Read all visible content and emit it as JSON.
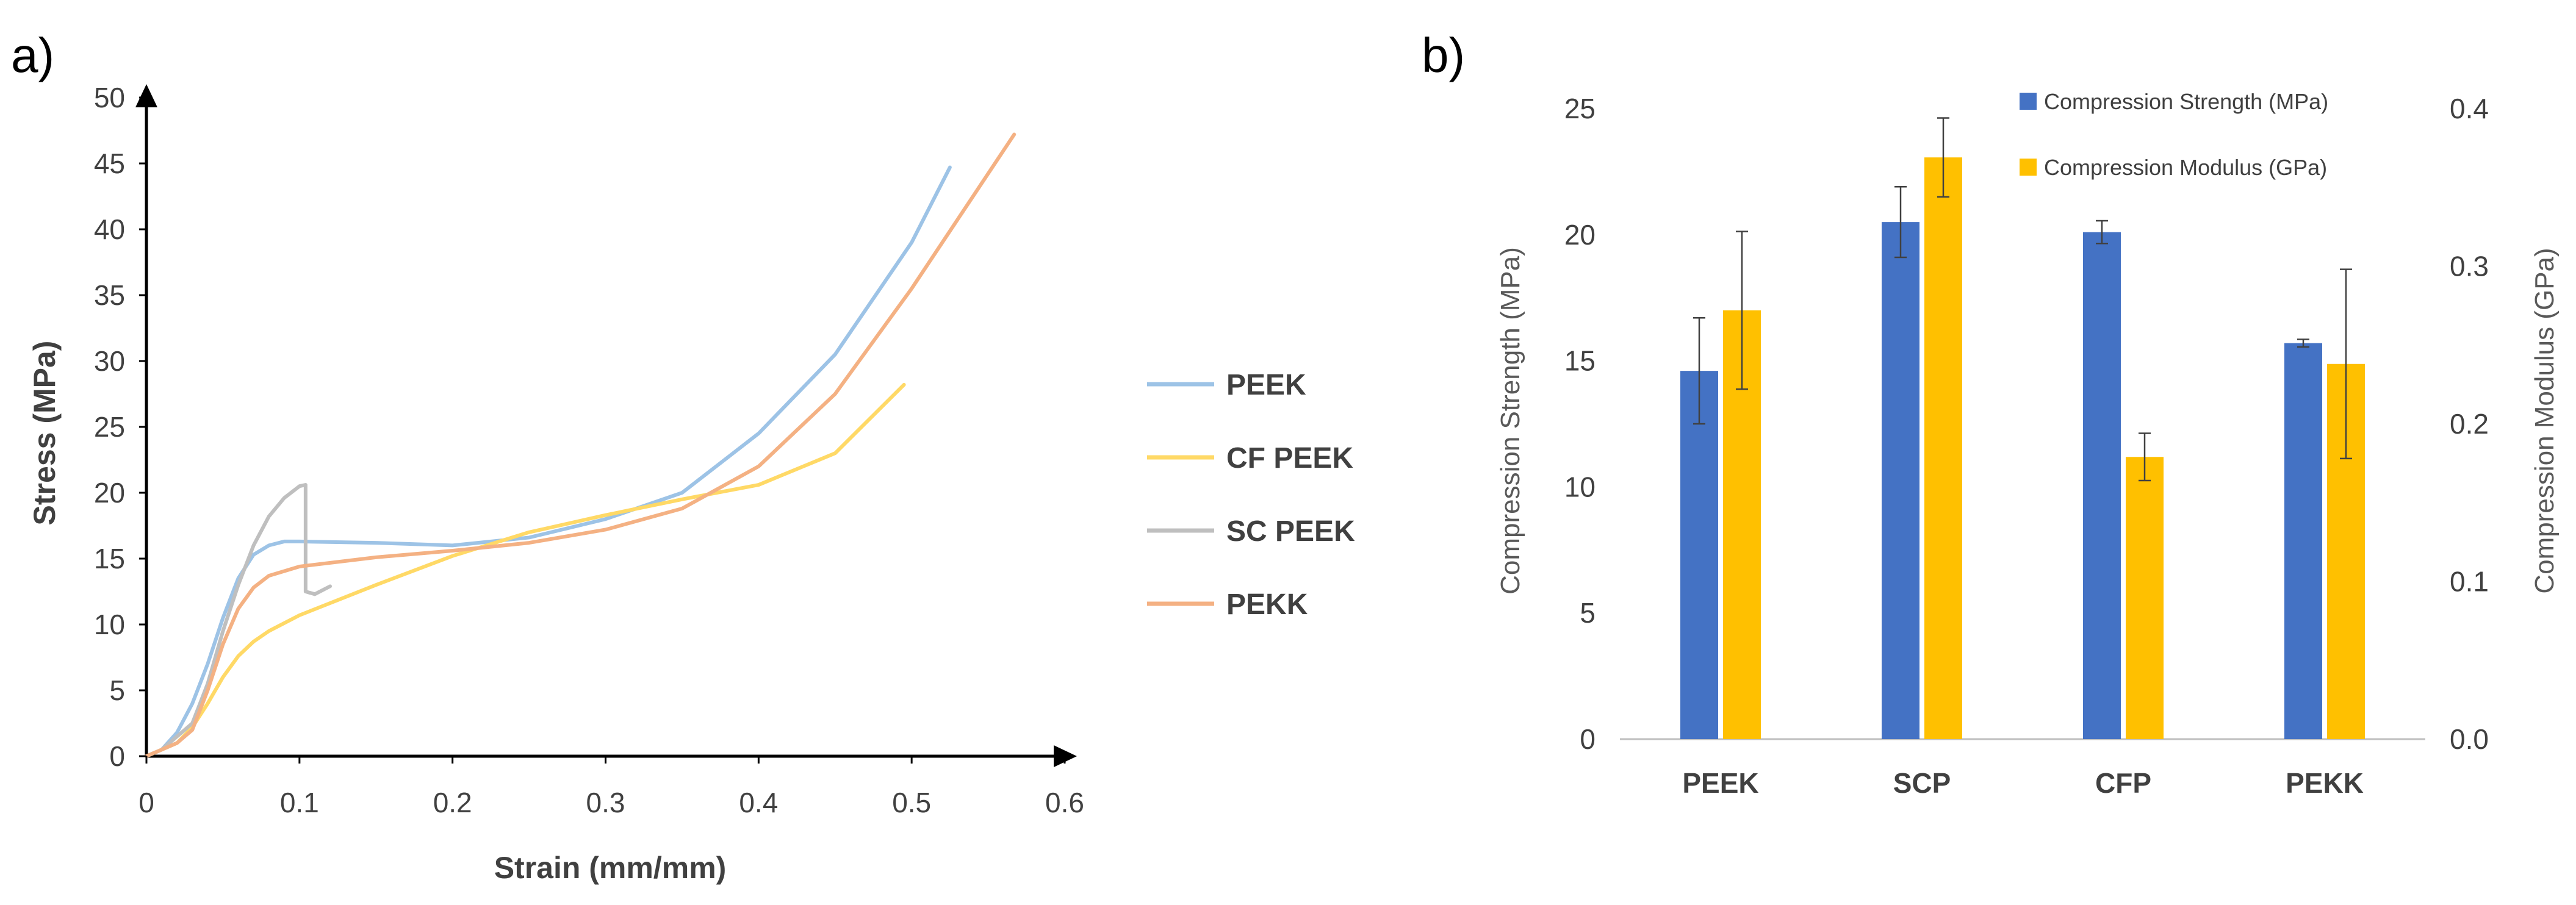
{
  "chart_data": [
    {
      "type": "line",
      "panel_label": "a)",
      "xlabel": "Strain (mm/mm)",
      "ylabel": "Stress (MPa)",
      "xlim": [
        0,
        0.6
      ],
      "ylim": [
        0,
        50
      ],
      "xticks": [
        "0",
        "0.1",
        "0.2",
        "0.3",
        "0.4",
        "0.5",
        "0.6"
      ],
      "yticks": [
        "0",
        "5",
        "10",
        "15",
        "20",
        "25",
        "30",
        "35",
        "40",
        "45",
        "50"
      ],
      "legend_position": "right",
      "series": [
        {
          "name": "PEEK",
          "color": "#9DC3E6",
          "points": [
            [
              0,
              0
            ],
            [
              0.01,
              0.5
            ],
            [
              0.02,
              1.8
            ],
            [
              0.03,
              4
            ],
            [
              0.04,
              7
            ],
            [
              0.05,
              10.5
            ],
            [
              0.06,
              13.5
            ],
            [
              0.07,
              15.3
            ],
            [
              0.08,
              16
            ],
            [
              0.09,
              16.3
            ],
            [
              0.1,
              16.3
            ],
            [
              0.15,
              16.2
            ],
            [
              0.2,
              16
            ],
            [
              0.25,
              16.6
            ],
            [
              0.3,
              18
            ],
            [
              0.35,
              20
            ],
            [
              0.4,
              24.5
            ],
            [
              0.45,
              30.5
            ],
            [
              0.5,
              39
            ],
            [
              0.525,
              44.7
            ]
          ]
        },
        {
          "name": "CF PEEK",
          "color": "#FFD966",
          "points": [
            [
              0,
              0
            ],
            [
              0.02,
              1
            ],
            [
              0.03,
              2.2
            ],
            [
              0.04,
              4
            ],
            [
              0.05,
              6
            ],
            [
              0.06,
              7.6
            ],
            [
              0.07,
              8.7
            ],
            [
              0.08,
              9.5
            ],
            [
              0.1,
              10.7
            ],
            [
              0.15,
              13
            ],
            [
              0.2,
              15.2
            ],
            [
              0.25,
              17
            ],
            [
              0.3,
              18.3
            ],
            [
              0.35,
              19.5
            ],
            [
              0.4,
              20.6
            ],
            [
              0.45,
              23
            ],
            [
              0.495,
              28.2
            ]
          ]
        },
        {
          "name": "SC PEEK",
          "color": "#BFBFBF",
          "points": [
            [
              0,
              0
            ],
            [
              0.01,
              0.5
            ],
            [
              0.02,
              1.5
            ],
            [
              0.03,
              2.5
            ],
            [
              0.04,
              5.5
            ],
            [
              0.05,
              9.5
            ],
            [
              0.06,
              13
            ],
            [
              0.07,
              16
            ],
            [
              0.08,
              18.2
            ],
            [
              0.09,
              19.6
            ],
            [
              0.1,
              20.5
            ],
            [
              0.104,
              20.6
            ],
            [
              0.104,
              12.5
            ],
            [
              0.11,
              12.3
            ],
            [
              0.12,
              12.9
            ]
          ]
        },
        {
          "name": "PEKK",
          "color": "#F4B183",
          "points": [
            [
              0,
              0
            ],
            [
              0.02,
              1
            ],
            [
              0.03,
              2
            ],
            [
              0.04,
              5
            ],
            [
              0.05,
              8.5
            ],
            [
              0.06,
              11.2
            ],
            [
              0.07,
              12.8
            ],
            [
              0.08,
              13.7
            ],
            [
              0.1,
              14.4
            ],
            [
              0.15,
              15.1
            ],
            [
              0.2,
              15.6
            ],
            [
              0.25,
              16.2
            ],
            [
              0.3,
              17.2
            ],
            [
              0.35,
              18.8
            ],
            [
              0.4,
              22
            ],
            [
              0.45,
              27.5
            ],
            [
              0.5,
              35.5
            ],
            [
              0.567,
              47.2
            ]
          ]
        }
      ]
    },
    {
      "type": "bar",
      "panel_label": "b)",
      "categories": [
        "PEEK",
        "SCP",
        "CFP",
        "PEKK"
      ],
      "ylabel_left": "Compression Strength (MPa)",
      "ylabel_right": "Compression Modulus (GPa)",
      "ylim_left": [
        0,
        25
      ],
      "ylim_right": [
        0,
        0.4
      ],
      "yticks_left": [
        "0",
        "5",
        "10",
        "15",
        "20",
        "25"
      ],
      "yticks_right": [
        "0.0",
        "0.1",
        "0.2",
        "0.3",
        "0.4"
      ],
      "legend_position": "top",
      "series": [
        {
          "name": "Compression Strength (MPa)",
          "axis": "left",
          "color": "#4472C4",
          "values": [
            14.6,
            20.5,
            20.1,
            15.7
          ],
          "errors": [
            2.1,
            1.4,
            0.45,
            0.15
          ]
        },
        {
          "name": "Compression Modulus (GPa)",
          "axis": "right",
          "color": "#FFC000",
          "values": [
            0.272,
            0.369,
            0.179,
            0.238
          ],
          "errors": [
            0.05,
            0.025,
            0.015,
            0.06
          ]
        }
      ]
    }
  ]
}
